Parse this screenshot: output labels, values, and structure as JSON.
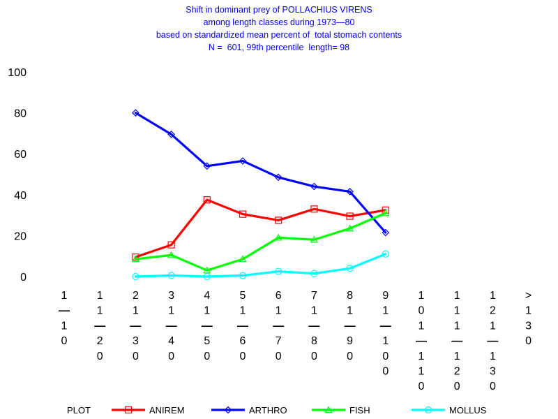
{
  "chart_data": {
    "type": "line",
    "title_lines": [
      "Shift in dominant prey of POLLACHIUS VIRENS",
      "among length classes during 1973—80",
      "based on standardized mean percent of  total stomach contents",
      "N =  601, 99th percentile  length= 98"
    ],
    "categories": [
      [
        "1",
        "—",
        "1",
        "0"
      ],
      [
        "1",
        "1",
        "—",
        "2",
        "0"
      ],
      [
        "2",
        "1",
        "—",
        "3",
        "0"
      ],
      [
        "3",
        "1",
        "—",
        "4",
        "0"
      ],
      [
        "4",
        "1",
        "—",
        "5",
        "0"
      ],
      [
        "5",
        "1",
        "—",
        "6",
        "0"
      ],
      [
        "6",
        "1",
        "—",
        "7",
        "0"
      ],
      [
        "7",
        "1",
        "—",
        "8",
        "0"
      ],
      [
        "8",
        "1",
        "—",
        "9",
        "0"
      ],
      [
        "9",
        "1",
        "—",
        "1",
        "0",
        "0"
      ],
      [
        "1",
        "0",
        "1",
        "—",
        "1",
        "1",
        "0"
      ],
      [
        "1",
        "1",
        "1",
        "—",
        "1",
        "2",
        "0"
      ],
      [
        "1",
        "2",
        "1",
        "—",
        "1",
        "3",
        "0"
      ],
      [
        ">",
        "1",
        "3",
        "0"
      ]
    ],
    "ylim": [
      0,
      100
    ],
    "yticks": [
      0,
      20,
      40,
      60,
      80,
      100
    ],
    "legend_label": "PLOT",
    "series": [
      {
        "name": "ANIREM",
        "color": "#ff0000",
        "marker": "square",
        "values": [
          null,
          null,
          9.5,
          15.5,
          37.5,
          30.5,
          27.5,
          33,
          29.5,
          32.5,
          null,
          null,
          null,
          null
        ]
      },
      {
        "name": "ARTHRO",
        "color": "#0000ff",
        "marker": "diamond",
        "values": [
          null,
          null,
          80,
          69.5,
          54,
          56.5,
          48.5,
          44,
          41.5,
          21.5,
          null,
          null,
          null,
          null
        ]
      },
      {
        "name": "FISH",
        "color": "#00ff00",
        "marker": "triangle",
        "values": [
          null,
          null,
          8.5,
          10.5,
          3,
          8.5,
          19,
          18,
          23.5,
          31,
          null,
          null,
          null,
          null
        ]
      },
      {
        "name": "MOLLUS",
        "color": "#00ffff",
        "marker": "circle",
        "values": [
          null,
          null,
          0,
          0.5,
          0,
          0.5,
          2.5,
          1.5,
          4,
          11,
          null,
          null,
          null,
          null
        ]
      }
    ]
  }
}
